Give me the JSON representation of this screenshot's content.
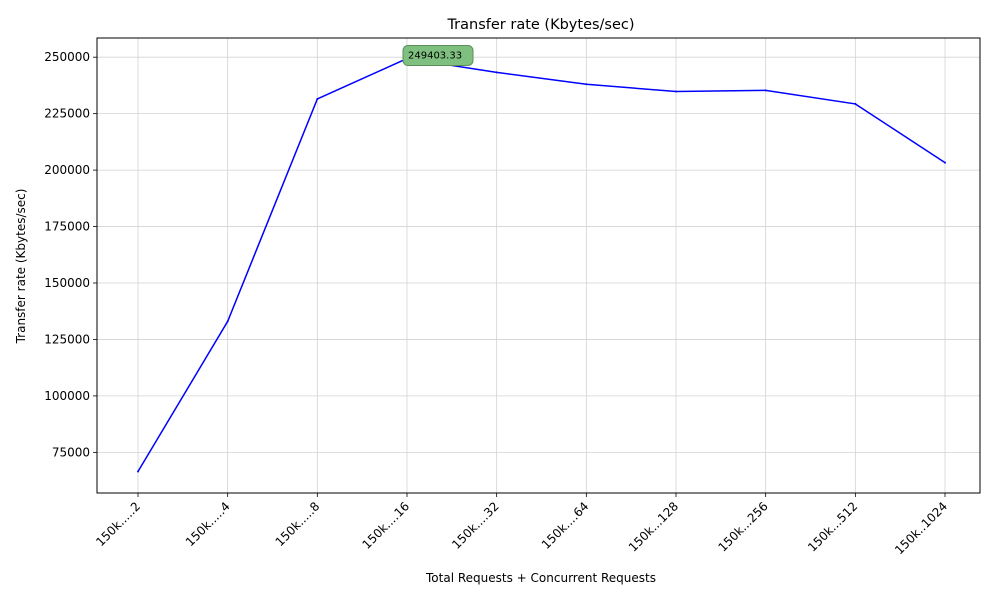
{
  "chart_data": {
    "type": "line",
    "title": "Transfer rate (Kbytes/sec)",
    "xlabel": "Total Requests + Concurrent Requests",
    "ylabel": "Transfer rate (Kbytes/sec)",
    "categories": [
      "150k.....2",
      "150k.....4",
      "150k.....8",
      "150k....16",
      "150k....32",
      "150k....64",
      "150k...128",
      "150k...256",
      "150k...512",
      "150k..1024"
    ],
    "series": [
      {
        "values": [
          66500,
          133000,
          231500,
          249403.33,
          243300,
          238000,
          234800,
          235300,
          229300,
          203300
        ],
        "color": "#0000ff"
      }
    ],
    "yticks": [
      75000,
      100000,
      125000,
      150000,
      175000,
      200000,
      225000,
      250000
    ],
    "ylim": [
      57000,
      258500
    ],
    "grid": true,
    "annotation": {
      "category_index": 3,
      "text": "249403.33",
      "color": "#228b22",
      "box_color": "#7fbf7f"
    }
  }
}
